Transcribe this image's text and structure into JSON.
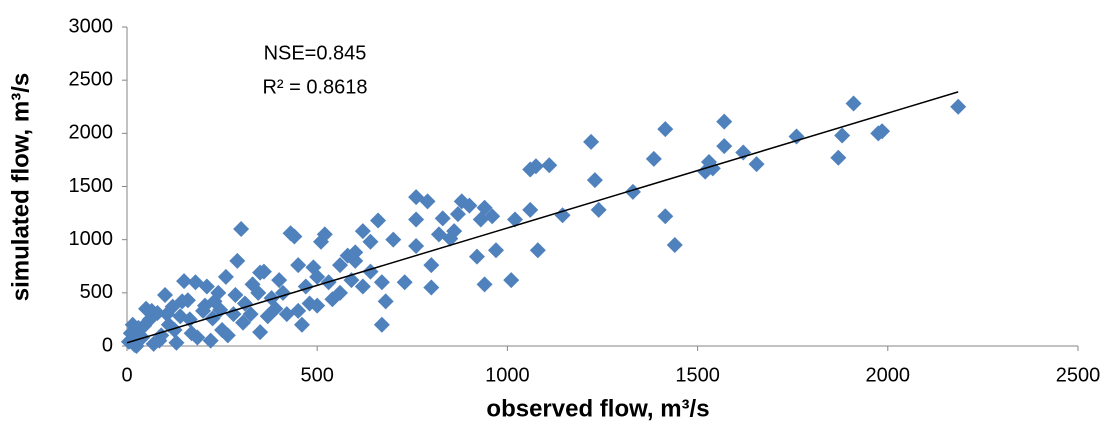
{
  "chart_data": {
    "type": "scatter",
    "xlabel": "observed flow, m³/s",
    "ylabel": "simulated flow, m³/s",
    "annotations": [
      "NSE=0.845",
      "R² = 0.8618"
    ],
    "xlim": [
      0,
      2500
    ],
    "xticks": [
      0,
      500,
      1000,
      1500,
      2000,
      2500
    ],
    "ylim": [
      0,
      3000
    ],
    "yticks": [
      0,
      500,
      1000,
      1500,
      2000,
      2500,
      3000
    ],
    "grid": false,
    "series": [
      {
        "color": "#4f81bd",
        "x": [
          2185,
          1910,
          1880,
          1870,
          1975,
          1985,
          1760,
          1655,
          1620,
          1570,
          1570,
          1530,
          1520,
          1540,
          1415,
          1415,
          1440,
          1385,
          1330,
          1220,
          1230,
          1240,
          1145,
          1110,
          1060,
          1075,
          1060,
          1010,
          1080,
          1020,
          940,
          930,
          920,
          970,
          960,
          940,
          900,
          880,
          870,
          860,
          850,
          830,
          820,
          800,
          800,
          790,
          760,
          760,
          760,
          730,
          680,
          670,
          670,
          660,
          640,
          620,
          600,
          590,
          580,
          560,
          540,
          520,
          510,
          500,
          490,
          480,
          460,
          450,
          430,
          440,
          420,
          400,
          380,
          360,
          350,
          330,
          310,
          300,
          290,
          280,
          260,
          250,
          240,
          230,
          220,
          210,
          200,
          180,
          170,
          160,
          150,
          140,
          130,
          120,
          110,
          100,
          90,
          80,
          70,
          60,
          50,
          40,
          30,
          20,
          10,
          5,
          15,
          25,
          45,
          65,
          85,
          105,
          125,
          145,
          165,
          185,
          205,
          225,
          245,
          265,
          285,
          305,
          325,
          345,
          370,
          390,
          410,
          450,
          470,
          500,
          530,
          560,
          600,
          620,
          350,
          640,
          700
        ],
        "y": [
          2250,
          2280,
          1980,
          1770,
          2000,
          2020,
          1970,
          1710,
          1820,
          2110,
          1880,
          1730,
          1640,
          1670,
          2040,
          1220,
          950,
          1760,
          1450,
          1920,
          1560,
          1280,
          1230,
          1700,
          1660,
          1690,
          1280,
          620,
          900,
          1190,
          580,
          1190,
          840,
          900,
          1220,
          1300,
          1320,
          1360,
          1240,
          1080,
          1010,
          1200,
          1050,
          550,
          760,
          1360,
          1400,
          1190,
          940,
          600,
          420,
          200,
          600,
          1180,
          980,
          1080,
          880,
          620,
          850,
          760,
          440,
          1050,
          980,
          650,
          740,
          400,
          200,
          760,
          1060,
          1030,
          300,
          620,
          450,
          700,
          130,
          580,
          400,
          1100,
          800,
          300,
          650,
          150,
          500,
          420,
          50,
          560,
          330,
          600,
          120,
          430,
          610,
          280,
          30,
          370,
          200,
          480,
          100,
          310,
          20,
          250,
          350,
          80,
          170,
          10,
          120,
          40,
          200,
          0,
          190,
          330,
          50,
          300,
          150,
          420,
          250,
          80,
          380,
          260,
          340,
          100,
          480,
          220,
          300,
          500,
          280,
          350,
          500,
          330,
          560,
          380,
          600,
          500,
          800,
          560,
          690,
          700,
          1000
        ]
      }
    ],
    "trendline": {
      "color": "#000000",
      "x": [
        0,
        2185
      ],
      "y": [
        30,
        2390
      ]
    }
  }
}
